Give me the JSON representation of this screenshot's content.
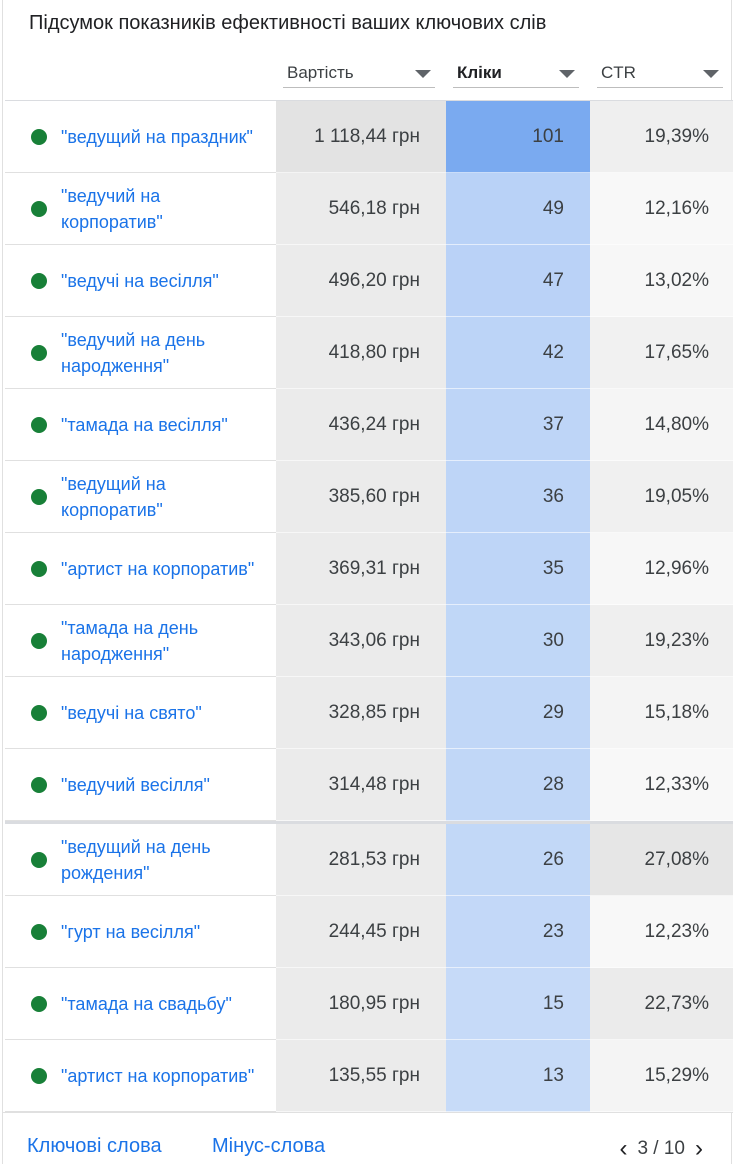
{
  "title": "Підсумок показників ефективності ваших ключових слів",
  "columns": {
    "cost": "Вартість",
    "clicks": "Кліки",
    "ctr": "CTR"
  },
  "colors": {
    "status_dot": "#188038",
    "link": "#1a73e8",
    "clicks_max": "#7aaaf0",
    "clicks_min": "#c7dbf8"
  },
  "rows": [
    {
      "keyword": "\"ведущий на праздник\"",
      "cost": "1 118,44 грн",
      "clicks": 101,
      "ctr": "19,39%"
    },
    {
      "keyword": "\"ведучий на корпоратив\"",
      "cost": "546,18 грн",
      "clicks": 49,
      "ctr": "12,16%"
    },
    {
      "keyword": "\"ведучі на весілля\"",
      "cost": "496,20 грн",
      "clicks": 47,
      "ctr": "13,02%"
    },
    {
      "keyword": "\"ведучий на день народження\"",
      "cost": "418,80 грн",
      "clicks": 42,
      "ctr": "17,65%"
    },
    {
      "keyword": "\"тамада на весілля\"",
      "cost": "436,24 грн",
      "clicks": 37,
      "ctr": "14,80%"
    },
    {
      "keyword": "\"ведущий на корпоратив\"",
      "cost": "385,60 грн",
      "clicks": 36,
      "ctr": "19,05%"
    },
    {
      "keyword": "\"артист на корпоратив\"",
      "cost": "369,31 грн",
      "clicks": 35,
      "ctr": "12,96%"
    },
    {
      "keyword": "\"тамада на день народження\"",
      "cost": "343,06 грн",
      "clicks": 30,
      "ctr": "19,23%"
    },
    {
      "keyword": "\"ведучі на свято\"",
      "cost": "328,85 грн",
      "clicks": 29,
      "ctr": "15,18%"
    },
    {
      "keyword": "\"ведучий весілля\"",
      "cost": "314,48 грн",
      "clicks": 28,
      "ctr": "12,33%"
    },
    {
      "keyword": "\"ведущий на день рождения\"",
      "cost": "281,53 грн",
      "clicks": 26,
      "ctr": "27,08%"
    },
    {
      "keyword": "\"гурт на весілля\"",
      "cost": "244,45 грн",
      "clicks": 23,
      "ctr": "12,23%"
    },
    {
      "keyword": "\"тамада на свадьбу\"",
      "cost": "180,95 грн",
      "clicks": 15,
      "ctr": "22,73%"
    },
    {
      "keyword": "\"артист на корпоратив\"",
      "cost": "135,55 грн",
      "clicks": 13,
      "ctr": "15,29%"
    }
  ],
  "footer": {
    "keywords_link": "Ключові слова",
    "negative_link": "Мінус-слова",
    "page": "3 / 10"
  }
}
